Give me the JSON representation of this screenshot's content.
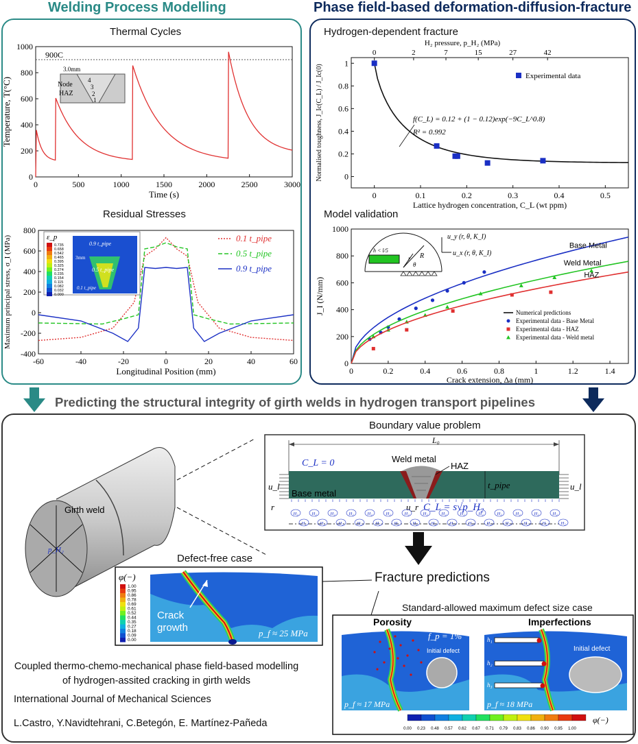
{
  "headers": {
    "left": "Welding Process Modelling",
    "right": "Phase field-based deformation-diffusion-fracture",
    "center": "Predicting the structural integrity of girth welds in hydrogen transport pipelines"
  },
  "colors": {
    "teal": "#2a8a86",
    "navy": "#0d2a5c",
    "red": "#e03030",
    "green": "#22c422",
    "blue": "#1a2fc4"
  },
  "thermal": {
    "title": "Thermal Cycles",
    "ylabel": "Temperature, T(°C)",
    "xlabel": "Time (s)",
    "ref_label": "900C",
    "inset": {
      "dim": "3.0mm",
      "node": "Node",
      "haz": "HAZ",
      "passes": [
        "4",
        "3",
        "2",
        "1"
      ]
    },
    "chart_data": {
      "type": "line",
      "xlim": [
        0,
        3000
      ],
      "ylim": [
        0,
        1000
      ],
      "xticks": [
        0,
        500,
        1000,
        1500,
        2000,
        2500,
        3000
      ],
      "yticks": [
        0,
        200,
        400,
        600,
        800,
        1000
      ],
      "peaks": [
        {
          "t": 8,
          "T": 360
        },
        {
          "t": 235,
          "T": 605
        },
        {
          "t": 1135,
          "T": 855
        },
        {
          "t": 2255,
          "T": 960
        }
      ],
      "ref_T": 900
    }
  },
  "residual": {
    "title": "Residual Stresses",
    "ylabel": "Maximum principal stress, σ_I (MPa)",
    "xlabel": "Longitudinal Position (mm)",
    "legend": [
      "0.1 t_pipe",
      "0.5 t_pipe",
      "0.9 t_pipe"
    ],
    "contour": {
      "symbol": "ε_p",
      "values": [
        "0.735",
        "0.658",
        "0.542",
        "0.465",
        "0.395",
        "0.325",
        "0.274",
        "0.235",
        "0.154",
        "0.115",
        "0.082",
        "0.032",
        "0.000"
      ],
      "labels": [
        "0.9 t_pipe",
        "3mm",
        "0.5 t_pipe",
        "0.1 t_pipe"
      ]
    },
    "chart_data": {
      "type": "line",
      "xlim": [
        -60,
        60
      ],
      "ylim": [
        -400,
        800
      ],
      "xticks": [
        -60,
        -40,
        -20,
        0,
        20,
        40,
        60
      ],
      "yticks": [
        -400,
        -200,
        0,
        200,
        400,
        600,
        800
      ],
      "series": [
        {
          "name": "0.1 t_pipe",
          "x": [
            -60,
            -40,
            -25,
            -15,
            -10,
            -5,
            0,
            5,
            10,
            15,
            25,
            40,
            60
          ],
          "y": [
            -270,
            -240,
            -150,
            100,
            550,
            620,
            730,
            620,
            550,
            100,
            -150,
            -240,
            -270
          ]
        },
        {
          "name": "0.5 t_pipe",
          "x": [
            -60,
            -30,
            -20,
            -13,
            -10,
            -5,
            0,
            5,
            10,
            13,
            20,
            30,
            60
          ],
          "y": [
            -100,
            -110,
            -60,
            -20,
            620,
            640,
            680,
            640,
            620,
            -20,
            -60,
            -110,
            -100
          ]
        },
        {
          "name": "0.9 t_pipe",
          "x": [
            -60,
            -40,
            -25,
            -18,
            -13,
            -10,
            -5,
            0,
            5,
            10,
            13,
            18,
            25,
            40,
            60
          ],
          "y": [
            -20,
            -80,
            -200,
            -280,
            -150,
            440,
            430,
            440,
            430,
            440,
            -150,
            -280,
            -200,
            -80,
            -20
          ]
        }
      ]
    }
  },
  "fracture": {
    "title": "Hydrogen-dependent fracture",
    "top_axis": "H₂ pressure, p_H₂ (MPa)",
    "ylabel": "Normalised toughness, J_Ic(C_L) / J_Ic(0)",
    "xlabel": "Lattice hydrogen concentration, C_L (wt ppm)",
    "legend": "Experimental data",
    "equation": "f(C_L) = 0.12 + (1 − 0.12)exp(−9C_L^0.8)",
    "r2": "R² = 0.992",
    "chart_data": {
      "type": "scatter",
      "xlim": [
        -0.05,
        0.55
      ],
      "ylim": [
        -0.1,
        1.05
      ],
      "xticks": [
        0,
        0.1,
        0.2,
        0.3,
        0.4,
        0.5
      ],
      "yticks": [
        0,
        0.2,
        0.4,
        0.6,
        0.8,
        1
      ],
      "top_ticks": [
        {
          "label": "0",
          "x": 0
        },
        {
          "label": "2",
          "x": 0.085
        },
        {
          "label": "7",
          "x": 0.155
        },
        {
          "label": "15",
          "x": 0.225
        },
        {
          "label": "27",
          "x": 0.3
        },
        {
          "label": "42",
          "x": 0.375
        }
      ],
      "points": [
        {
          "x": 0,
          "y": 1.0
        },
        {
          "x": 0.135,
          "y": 0.27
        },
        {
          "x": 0.175,
          "y": 0.18
        },
        {
          "x": 0.18,
          "y": 0.18
        },
        {
          "x": 0.245,
          "y": 0.12
        },
        {
          "x": 0.365,
          "y": 0.14
        }
      ]
    }
  },
  "validation": {
    "title": "Model validation",
    "ylabel": "J_I (N/mm)",
    "xlabel": "Crack extension, Δa (mm)",
    "curve_labels": [
      "Base Metal",
      "Weld Metal",
      "HAZ"
    ],
    "legend": [
      "Numerical predictions",
      "Experimental data - Base Metal",
      "Experimental data - HAZ",
      "Experimental data - Weld metal"
    ],
    "inset": {
      "uy": "u_y (r, θ, K_I)",
      "ux": "u_x (r, θ, K_I)",
      "h": "h < l/5",
      "R": "R",
      "r": "r",
      "theta": "θ"
    },
    "chart_data": {
      "type": "line",
      "xlim": [
        0,
        1.5
      ],
      "ylim": [
        0,
        1000
      ],
      "xticks": [
        0,
        0.2,
        0.4,
        0.6,
        0.8,
        1,
        1.2,
        1.4
      ],
      "yticks": [
        0,
        200,
        400,
        600,
        800,
        1000
      ],
      "series": [
        {
          "name": "Base Metal",
          "final": 940,
          "points": [
            [
              0.1,
              180
            ],
            [
              0.16,
              230
            ],
            [
              0.2,
              270
            ],
            [
              0.26,
              330
            ],
            [
              0.35,
              410
            ],
            [
              0.44,
              470
            ],
            [
              0.52,
              540
            ],
            [
              0.61,
              600
            ],
            [
              0.72,
              680
            ]
          ]
        },
        {
          "name": "Weld Metal",
          "final": 760,
          "points": [
            [
              0.12,
              200
            ],
            [
              0.2,
              250
            ],
            [
              0.3,
              310
            ],
            [
              0.4,
              360
            ],
            [
              0.52,
              420
            ],
            [
              0.7,
              520
            ],
            [
              0.92,
              580
            ],
            [
              1.1,
              640
            ],
            [
              1.3,
              690
            ]
          ]
        },
        {
          "name": "HAZ",
          "final": 680,
          "points": [
            [
              0.12,
              110
            ],
            [
              0.3,
              250
            ],
            [
              0.55,
              390
            ],
            [
              0.87,
              510
            ],
            [
              1.08,
              530
            ]
          ]
        }
      ]
    }
  },
  "bvp": {
    "title": "Boundary value problem",
    "L0": "L₀",
    "CL0": "C_L = 0",
    "weld_metal": "Weld metal",
    "haz": "HAZ",
    "tpipe": "t_pipe",
    "ul": "u_l",
    "base_metal": "Base metal",
    "ur": "u_r",
    "CL": "C_L = s√p_H₂",
    "r": "r",
    "h2": "H₂"
  },
  "pipe": {
    "girth_weld": "Girth weld",
    "ph2": "p_H₂"
  },
  "fracture_predictions": "Fracture predictions",
  "defect_free": {
    "title": "Defect-free case",
    "phi": "φ(−)",
    "scale": [
      "1.00",
      "0.95",
      "0.86",
      "0.78",
      "0.69",
      "0.61",
      "0.52",
      "0.44",
      "0.35",
      "0.27",
      "0.18",
      "0.09",
      "0.00"
    ],
    "crack": "Crack growth",
    "pf": "p_f ≈ 25 MPa"
  },
  "std_case": {
    "title": "Standard-allowed maximum defect size case",
    "porosity": "Porosity",
    "imperfections": "Imperfections",
    "fp": "f_p = 1%",
    "initial_defect": "Initial defect",
    "pf1": "p_f ≈ 17 MPa",
    "pf2": "p_f ≈ 18 MPa",
    "h": [
      "h₁",
      "h₂",
      "h₃"
    ],
    "scale": [
      "0.00",
      "0.23",
      "0.48",
      "0.57",
      "0.62",
      "0.67",
      "0.71",
      "0.79",
      "0.83",
      "0.86",
      "0.90",
      "0.95",
      "1.00"
    ],
    "phi": "φ(−)"
  },
  "citation": {
    "title": "Coupled thermo-chemo-mechanical phase field-based modelling of hydrogen-assited cracking in girth welds",
    "journal": "International Journal of Mechanical Sciences",
    "authors": "L.Castro, Y.Navidtehrani, C.Betegón, E. Martínez-Pañeda"
  }
}
